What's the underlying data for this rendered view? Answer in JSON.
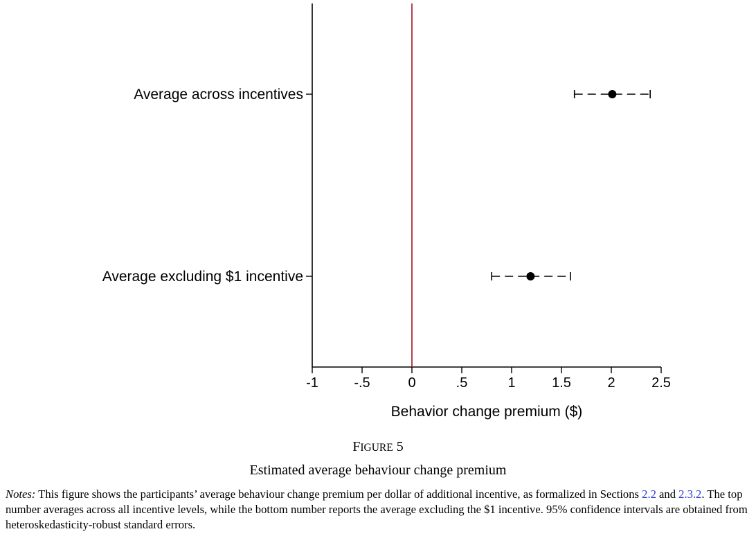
{
  "chart_data": {
    "type": "scatter",
    "orientation": "horizontal",
    "categories": [
      "Average across incentives",
      "Average excluding $1 incentive"
    ],
    "estimates": [
      2.01,
      1.19
    ],
    "ci_low": [
      1.63,
      0.8
    ],
    "ci_high": [
      2.39,
      1.59
    ],
    "xlabel": "Behavior change premium ($)",
    "xlim": [
      -1,
      2.5
    ],
    "xticks": [
      -1,
      -0.5,
      0,
      0.5,
      1,
      1.5,
      2,
      2.5
    ],
    "xtick_labels": [
      "-1",
      "-.5",
      "0",
      ".5",
      "1",
      "1.5",
      "2",
      "2.5"
    ],
    "reference_line": {
      "x": 0,
      "color": "#a3101d"
    },
    "point_color": "#000000",
    "grid": false
  },
  "caption": {
    "figure_label_first": "F",
    "figure_label_rest": "IGURE",
    "figure_number": "5",
    "title": "Estimated average behaviour change premium"
  },
  "notes": {
    "label": "Notes:",
    "text_1": " This figure shows the participants’ average behaviour change premium per dollar of additional incentive, as formalized in Sections ",
    "ref_1": "2.2",
    "text_2": " and ",
    "ref_2": "2.3.2",
    "text_3": ". The top number averages across all incentive levels, while the bottom number reports the average excluding the $1 incentive. 95% confidence intervals are obtained from heteroskedasticity-robust standard errors."
  }
}
